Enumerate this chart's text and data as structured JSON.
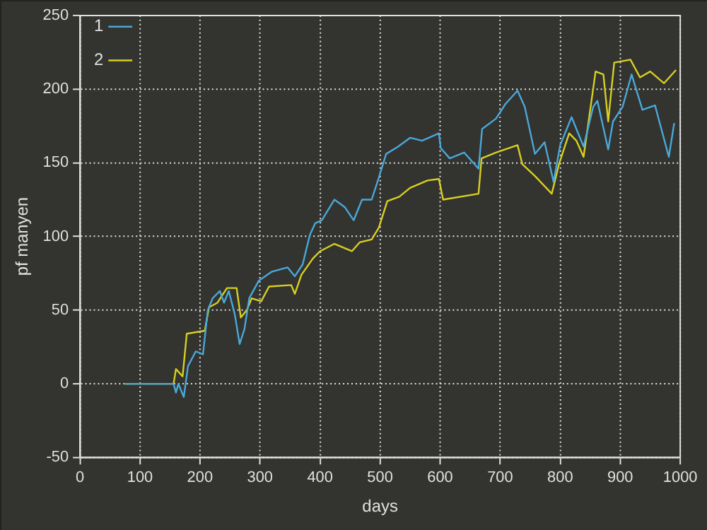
{
  "chart_data": {
    "type": "line",
    "xlabel": "days",
    "ylabel": "pf manyen",
    "xlim": [
      0,
      1000
    ],
    "ylim": [
      -50,
      250
    ],
    "xticks": [
      0,
      100,
      200,
      300,
      400,
      500,
      600,
      700,
      800,
      900,
      1000
    ],
    "yticks": [
      -50,
      0,
      50,
      100,
      150,
      200,
      250
    ],
    "grid": true,
    "legend": "top left",
    "marker": "none",
    "line_style": "solid",
    "series": [
      {
        "name": "1",
        "color": "#4aa8d8",
        "x": [
          75,
          156,
          160,
          164,
          173,
          180,
          193,
          205,
          213,
          221,
          233,
          240,
          248,
          258,
          266,
          274,
          282,
          298,
          319,
          346,
          358,
          371,
          383,
          392,
          403,
          424,
          441,
          456,
          470,
          486,
          498,
          510,
          530,
          550,
          570,
          598,
          601,
          616,
          640,
          664,
          670,
          693,
          709,
          729,
          741,
          758,
          774,
          789,
          800,
          819,
          839,
          855,
          862,
          880,
          888,
          904,
          919,
          937,
          958,
          981,
          990
        ],
        "values": [
          0,
          0,
          -6,
          0,
          -9,
          12,
          22,
          20,
          50,
          58,
          63,
          55,
          63,
          47,
          27,
          37,
          58,
          70,
          76,
          79,
          73,
          81,
          101,
          109,
          111,
          125,
          120,
          111,
          125,
          125,
          140,
          156,
          161,
          167,
          165,
          170,
          160,
          153,
          157,
          146,
          173,
          180,
          190,
          199,
          188,
          156,
          164,
          137,
          162,
          181,
          161,
          188,
          192,
          159,
          178,
          188,
          210,
          186,
          189,
          154,
          177
        ]
      },
      {
        "name": "2",
        "color": "#d8d020",
        "x": [
          75,
          156,
          160,
          171,
          178,
          208,
          215,
          229,
          245,
          261,
          268,
          278,
          286,
          302,
          315,
          352,
          358,
          369,
          388,
          400,
          424,
          453,
          466,
          486,
          498,
          512,
          532,
          550,
          579,
          598,
          605,
          664,
          669,
          693,
          729,
          737,
          758,
          786,
          798,
          815,
          827,
          839,
          849,
          859,
          872,
          880,
          890,
          917,
          933,
          950,
          973,
          993
        ],
        "values": [
          0,
          0,
          10,
          5,
          34,
          36,
          52,
          55,
          65,
          65,
          45,
          50,
          58,
          56,
          66,
          67,
          61,
          74,
          85,
          90,
          95,
          90,
          96,
          98,
          106,
          124,
          127,
          133,
          138,
          139,
          125,
          129,
          153,
          157,
          162,
          149,
          141,
          129,
          149,
          170,
          165,
          154,
          183,
          212,
          210,
          178,
          218,
          220,
          208,
          212,
          204,
          213
        ]
      }
    ]
  }
}
